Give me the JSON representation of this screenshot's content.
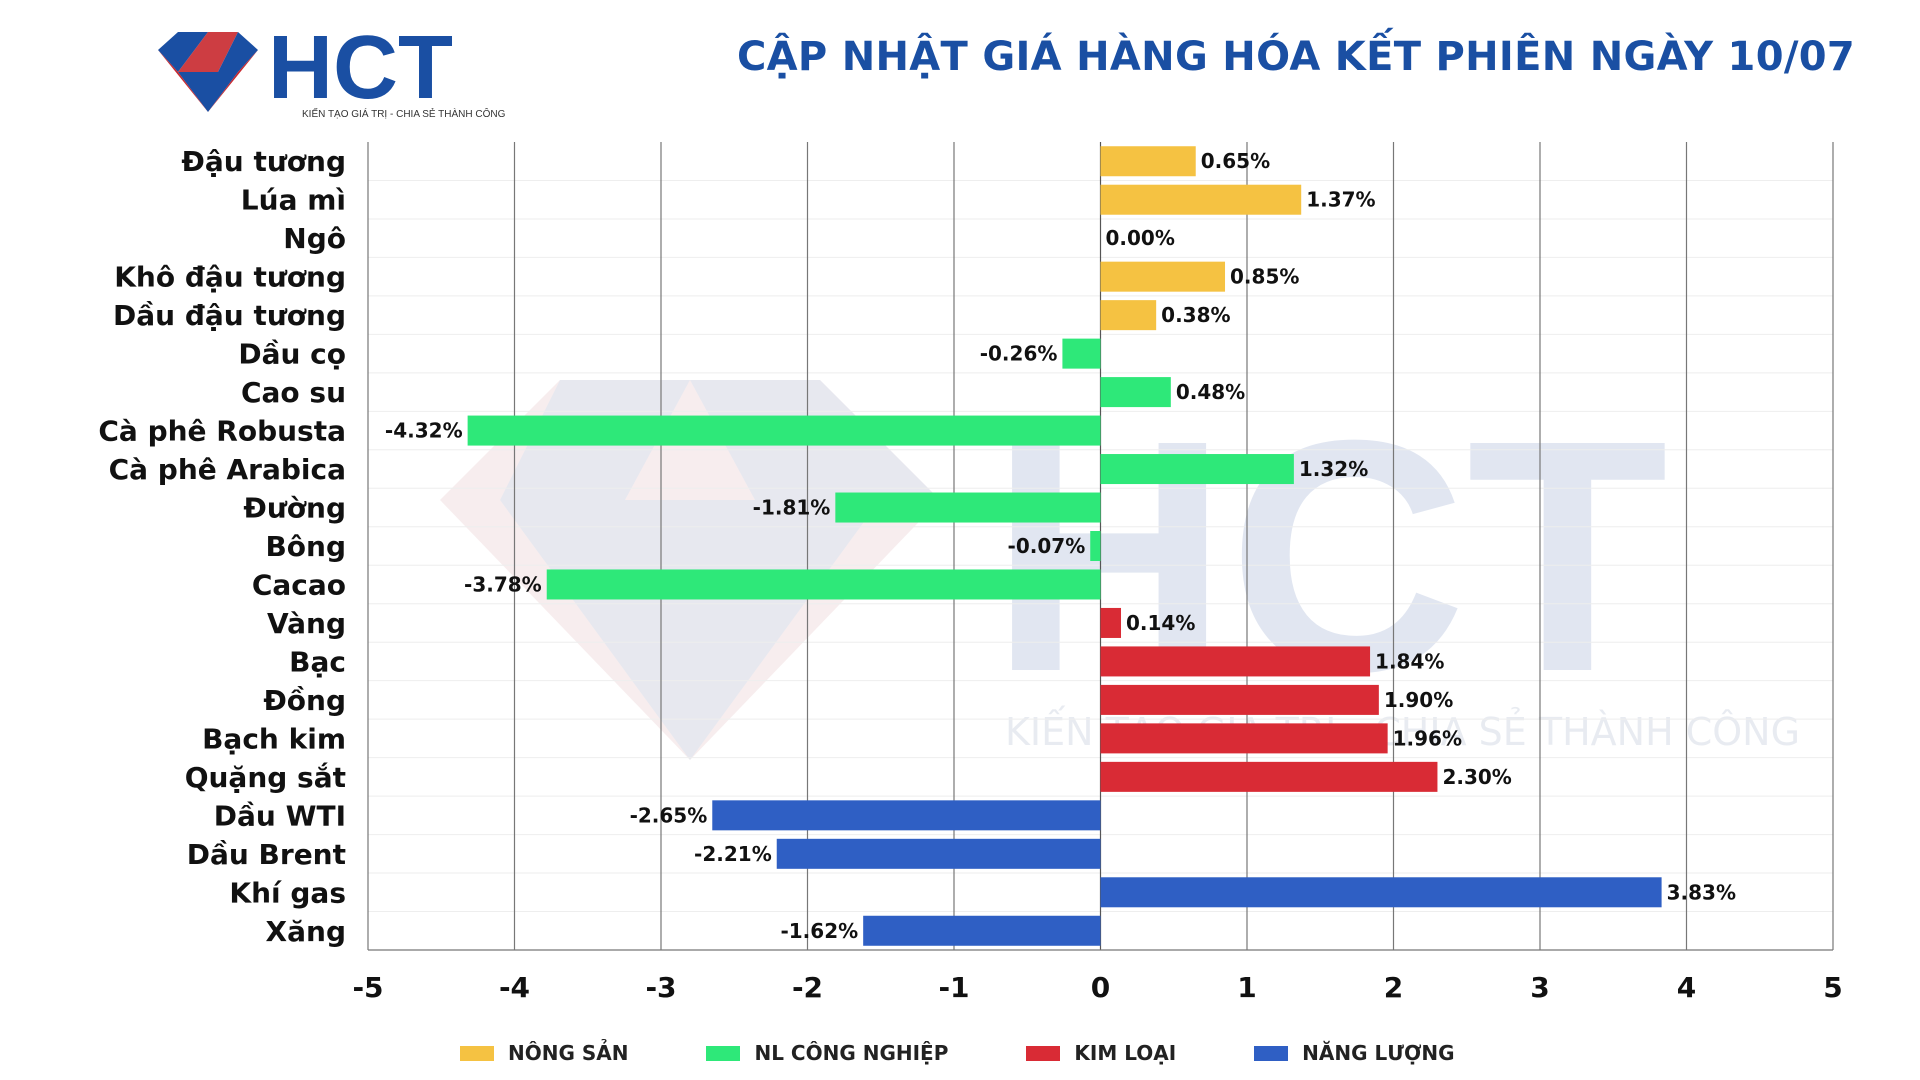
{
  "header": {
    "title": "CẬP NHẬT GIÁ HÀNG HÓA KẾT PHIÊN NGÀY 10/07",
    "logo_text": "HCT",
    "logo_tagline": "KIẾN TẠO GIÁ TRỊ - CHIA SẺ THÀNH CÔNG"
  },
  "watermark": {
    "text": "HCT",
    "tagline": "KIẾN TẠO GIÁ TRỊ - CHIA SẺ THÀNH CÔNG"
  },
  "colors": {
    "title": "#1a4fa3",
    "logo_blue": "#1a4fa3",
    "logo_red": "#c8282e",
    "groups": {
      "NÔNG SẢN": "#f5c242",
      "NL CÔNG NGHIỆP": "#2ee879",
      "KIM LOẠI": "#d92b35",
      "NĂNG LƯỢNG": "#2f5fc4"
    }
  },
  "legend": [
    {
      "label": "NÔNG SẢN",
      "color": "#f5c242"
    },
    {
      "label": "NL CÔNG NGHIỆP",
      "color": "#2ee879"
    },
    {
      "label": "KIM LOẠI",
      "color": "#d92b35"
    },
    {
      "label": "NĂNG LƯỢNG",
      "color": "#2f5fc4"
    }
  ],
  "chart_data": {
    "type": "bar",
    "orientation": "horizontal",
    "title": "CẬP NHẬT GIÁ HÀNG HÓA KẾT PHIÊN NGÀY 10/07",
    "xlabel": "",
    "ylabel": "",
    "xlim": [
      -5,
      5
    ],
    "x_ticks": [
      -5,
      -4,
      -3,
      -2,
      -1,
      0,
      1,
      2,
      3,
      4,
      5
    ],
    "grid": "vertical",
    "legend_position": "bottom",
    "categories": [
      "Đậu tương",
      "Lúa mì",
      "Ngô",
      "Khô đậu tương",
      "Dầu đậu tương",
      "Dầu cọ",
      "Cao su",
      "Cà phê Robusta",
      "Cà phê Arabica",
      "Đường",
      "Bông",
      "Cacao",
      "Vàng",
      "Bạc",
      "Đồng",
      "Bạch kim",
      "Quặng sắt",
      "Dầu WTI",
      "Dầu Brent",
      "Khí gas",
      "Xăng"
    ],
    "values": [
      0.65,
      1.37,
      0.0,
      0.85,
      0.38,
      -0.26,
      0.48,
      -4.32,
      1.32,
      -1.81,
      -0.07,
      -3.78,
      0.14,
      1.84,
      1.9,
      1.96,
      2.3,
      -2.65,
      -2.21,
      3.83,
      -1.62
    ],
    "value_labels": [
      "0.65%",
      "1.37%",
      "0.00%",
      "0.85%",
      "0.38%",
      "-0.26%",
      "0.48%",
      "-4.32%",
      "1.32%",
      "-1.81%",
      "-0.07%",
      "-3.78%",
      "0.14%",
      "1.84%",
      "1.90%",
      "1.96%",
      "2.30%",
      "-2.65%",
      "-2.21%",
      "3.83%",
      "-1.62%"
    ],
    "groups": [
      "NÔNG SẢN",
      "NÔNG SẢN",
      "NÔNG SẢN",
      "NÔNG SẢN",
      "NÔNG SẢN",
      "NL CÔNG NGHIỆP",
      "NL CÔNG NGHIỆP",
      "NL CÔNG NGHIỆP",
      "NL CÔNG NGHIỆP",
      "NL CÔNG NGHIỆP",
      "NL CÔNG NGHIỆP",
      "NL CÔNG NGHIỆP",
      "KIM LOẠI",
      "KIM LOẠI",
      "KIM LOẠI",
      "KIM LOẠI",
      "KIM LOẠI",
      "NĂNG LƯỢNG",
      "NĂNG LƯỢNG",
      "NĂNG LƯỢNG",
      "NĂNG LƯỢNG"
    ]
  }
}
